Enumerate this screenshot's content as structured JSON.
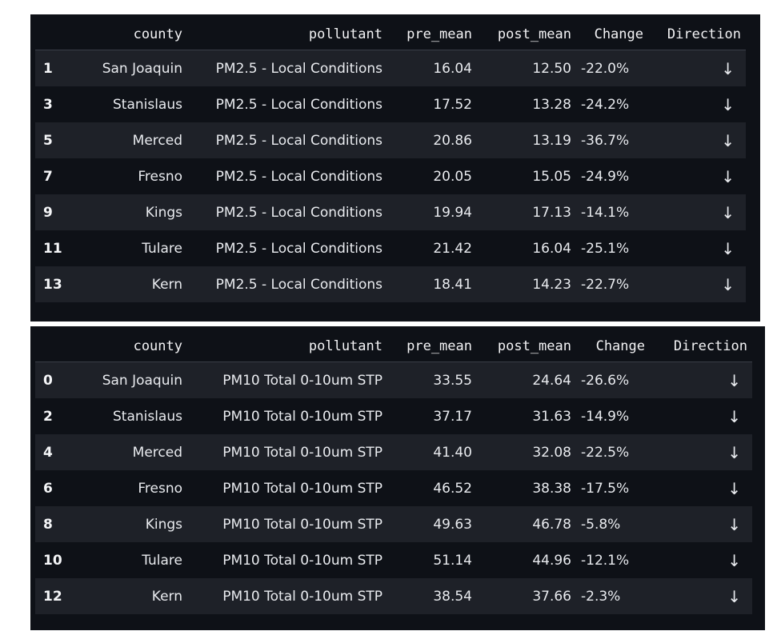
{
  "tables": [
    {
      "headers": [
        "",
        "county",
        "pollutant",
        "pre_mean",
        "post_mean",
        "Change",
        "Direction"
      ],
      "rows": [
        {
          "index": "1",
          "county": "San Joaquin",
          "pollutant": "PM2.5 - Local Conditions",
          "pre_mean": "16.04",
          "post_mean": "12.50",
          "change": "-22.0%",
          "direction": "↓"
        },
        {
          "index": "3",
          "county": "Stanislaus",
          "pollutant": "PM2.5 - Local Conditions",
          "pre_mean": "17.52",
          "post_mean": "13.28",
          "change": "-24.2%",
          "direction": "↓"
        },
        {
          "index": "5",
          "county": "Merced",
          "pollutant": "PM2.5 - Local Conditions",
          "pre_mean": "20.86",
          "post_mean": "13.19",
          "change": "-36.7%",
          "direction": "↓"
        },
        {
          "index": "7",
          "county": "Fresno",
          "pollutant": "PM2.5 - Local Conditions",
          "pre_mean": "20.05",
          "post_mean": "15.05",
          "change": "-24.9%",
          "direction": "↓"
        },
        {
          "index": "9",
          "county": "Kings",
          "pollutant": "PM2.5 - Local Conditions",
          "pre_mean": "19.94",
          "post_mean": "17.13",
          "change": "-14.1%",
          "direction": "↓"
        },
        {
          "index": "11",
          "county": "Tulare",
          "pollutant": "PM2.5 - Local Conditions",
          "pre_mean": "21.42",
          "post_mean": "16.04",
          "change": "-25.1%",
          "direction": "↓"
        },
        {
          "index": "13",
          "county": "Kern",
          "pollutant": "PM2.5 - Local Conditions",
          "pre_mean": "18.41",
          "post_mean": "14.23",
          "change": "-22.7%",
          "direction": "↓"
        }
      ]
    },
    {
      "headers": [
        "",
        "county",
        "pollutant",
        "pre_mean",
        "post_mean",
        "Change",
        "Direction"
      ],
      "rows": [
        {
          "index": "0",
          "county": "San Joaquin",
          "pollutant": "PM10 Total 0-10um STP",
          "pre_mean": "33.55",
          "post_mean": "24.64",
          "change": "-26.6%",
          "direction": "↓"
        },
        {
          "index": "2",
          "county": "Stanislaus",
          "pollutant": "PM10 Total 0-10um STP",
          "pre_mean": "37.17",
          "post_mean": "31.63",
          "change": "-14.9%",
          "direction": "↓"
        },
        {
          "index": "4",
          "county": "Merced",
          "pollutant": "PM10 Total 0-10um STP",
          "pre_mean": "41.40",
          "post_mean": "32.08",
          "change": "-22.5%",
          "direction": "↓"
        },
        {
          "index": "6",
          "county": "Fresno",
          "pollutant": "PM10 Total 0-10um STP",
          "pre_mean": "46.52",
          "post_mean": "38.38",
          "change": "-17.5%",
          "direction": "↓"
        },
        {
          "index": "8",
          "county": "Kings",
          "pollutant": "PM10 Total 0-10um STP",
          "pre_mean": "49.63",
          "post_mean": "46.78",
          "change": "-5.8%",
          "direction": "↓"
        },
        {
          "index": "10",
          "county": "Tulare",
          "pollutant": "PM10 Total 0-10um STP",
          "pre_mean": "51.14",
          "post_mean": "44.96",
          "change": "-12.1%",
          "direction": "↓"
        },
        {
          "index": "12",
          "county": "Kern",
          "pollutant": "PM10 Total 0-10um STP",
          "pre_mean": "38.54",
          "post_mean": "37.66",
          "change": "-2.3%",
          "direction": "↓"
        }
      ]
    }
  ],
  "colors": {
    "background": "#0e1117",
    "striped_row": "#1e2128",
    "text": "#e9ebef"
  }
}
